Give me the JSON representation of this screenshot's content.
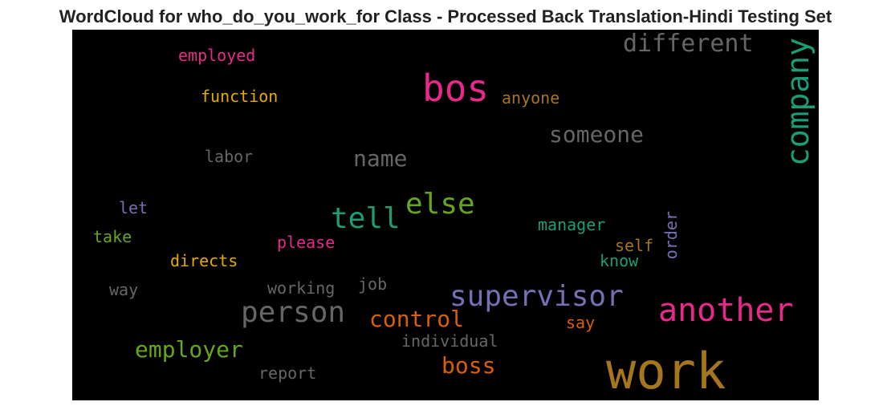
{
  "chart_data": {
    "type": "wordcloud",
    "title": "WordCloud for who_do_you_work_for Class - Processed Back Translation-Hindi Testing Set",
    "background_color": "#000000",
    "words": [
      {
        "text": "work",
        "color": "#a6761d"
      },
      {
        "text": "bos",
        "color": "#e7298a"
      },
      {
        "text": "another",
        "color": "#e7298a"
      },
      {
        "text": "company",
        "color": "#1b9e77"
      },
      {
        "text": "supervisor",
        "color": "#7570b3"
      },
      {
        "text": "person",
        "color": "#666666"
      },
      {
        "text": "tell",
        "color": "#1b9e77"
      },
      {
        "text": "else",
        "color": "#66a61e"
      },
      {
        "text": "different",
        "color": "#666666"
      },
      {
        "text": "someone",
        "color": "#666666"
      },
      {
        "text": "control",
        "color": "#d95f02"
      },
      {
        "text": "employer",
        "color": "#66a61e"
      },
      {
        "text": "boss",
        "color": "#d95f02"
      },
      {
        "text": "name",
        "color": "#666666"
      },
      {
        "text": "function",
        "color": "#e6ab02"
      },
      {
        "text": "employed",
        "color": "#e7298a"
      },
      {
        "text": "anyone",
        "color": "#a6761d"
      },
      {
        "text": "manager",
        "color": "#1b9e77"
      },
      {
        "text": "individual",
        "color": "#666666"
      },
      {
        "text": "directs",
        "color": "#e6ab02"
      },
      {
        "text": "please",
        "color": "#e7298a"
      },
      {
        "text": "working",
        "color": "#666666"
      },
      {
        "text": "labor",
        "color": "#666666"
      },
      {
        "text": "report",
        "color": "#666666"
      },
      {
        "text": "self",
        "color": "#a6761d"
      },
      {
        "text": "know",
        "color": "#1b9e77"
      },
      {
        "text": "order",
        "color": "#7570b3"
      },
      {
        "text": "say",
        "color": "#d95f02"
      },
      {
        "text": "job",
        "color": "#666666"
      },
      {
        "text": "way",
        "color": "#666666"
      },
      {
        "text": "take",
        "color": "#66a61e"
      },
      {
        "text": "let",
        "color": "#7570b3"
      }
    ]
  }
}
